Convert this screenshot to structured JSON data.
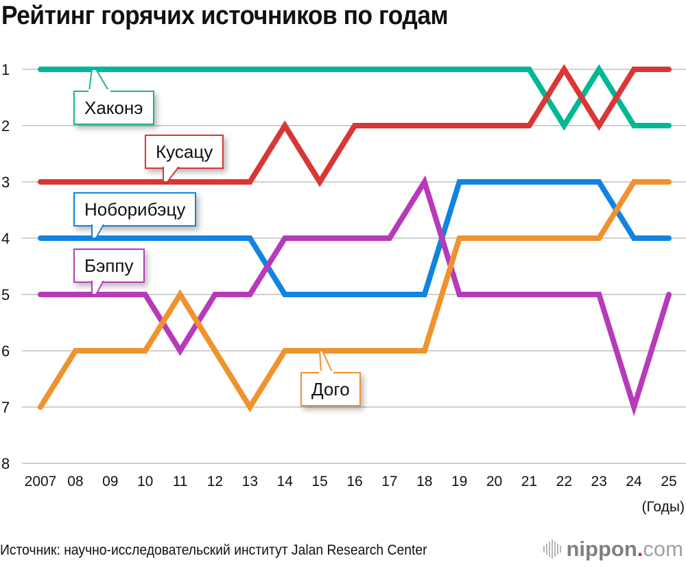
{
  "title": "Рейтинг горячих источников по годам",
  "x_unit": "(Годы)",
  "source": "Источник: научно-исследовательский институт Jalan Research Center",
  "logo": {
    "name": "nippon",
    "dot": ".",
    "tld": "com"
  },
  "y_ticks": [
    "1",
    "2",
    "3",
    "4",
    "5",
    "6",
    "7",
    "8"
  ],
  "x_ticks": [
    "2007",
    "08",
    "09",
    "10",
    "11",
    "12",
    "13",
    "14",
    "15",
    "16",
    "17",
    "18",
    "19",
    "20",
    "21",
    "22",
    "23",
    "24",
    "25"
  ],
  "labels": {
    "hakone": "Хаконэ",
    "kusatsu": "Кусацу",
    "noboribetsu": "Ноборибэцу",
    "beppu": "Бэппу",
    "dogo": "Дого"
  },
  "chart_data": {
    "type": "line",
    "title": "Рейтинг горячих источников по годам",
    "xlabel": "(Годы)",
    "ylabel": "",
    "ylim": [
      8,
      1
    ],
    "y_inverted": true,
    "grid": true,
    "legend_position": "inline callouts",
    "x": [
      2007,
      2008,
      2009,
      2010,
      2011,
      2012,
      2013,
      2014,
      2015,
      2016,
      2017,
      2018,
      2019,
      2020,
      2021,
      2022,
      2023,
      2024,
      2025
    ],
    "categories": [
      "2007",
      "08",
      "09",
      "10",
      "11",
      "12",
      "13",
      "14",
      "15",
      "16",
      "17",
      "18",
      "19",
      "20",
      "21",
      "22",
      "23",
      "24",
      "25"
    ],
    "series": [
      {
        "name": "Хаконэ",
        "color": "#00b894",
        "values": [
          1,
          1,
          1,
          1,
          1,
          1,
          1,
          1,
          1,
          1,
          1,
          1,
          1,
          1,
          1,
          2,
          1,
          2,
          2
        ]
      },
      {
        "name": "Кусацу",
        "color": "#d93636",
        "values": [
          3,
          3,
          3,
          3,
          3,
          3,
          3,
          2,
          3,
          2,
          2,
          2,
          2,
          2,
          2,
          1,
          2,
          1,
          1
        ]
      },
      {
        "name": "Ноборибэцу",
        "color": "#1283e0",
        "values": [
          4,
          4,
          4,
          4,
          4,
          4,
          4,
          5,
          5,
          5,
          5,
          5,
          3,
          3,
          3,
          3,
          3,
          4,
          4
        ]
      },
      {
        "name": "Бэппу",
        "color": "#b73ab9",
        "values": [
          5,
          5,
          5,
          5,
          6,
          5,
          5,
          4,
          4,
          4,
          4,
          3,
          5,
          5,
          5,
          5,
          5,
          7,
          5
        ]
      },
      {
        "name": "Дого",
        "color": "#f0922e",
        "values": [
          7,
          6,
          6,
          6,
          5,
          6,
          7,
          6,
          6,
          6,
          6,
          6,
          4,
          4,
          4,
          4,
          4,
          3,
          3
        ]
      }
    ]
  }
}
